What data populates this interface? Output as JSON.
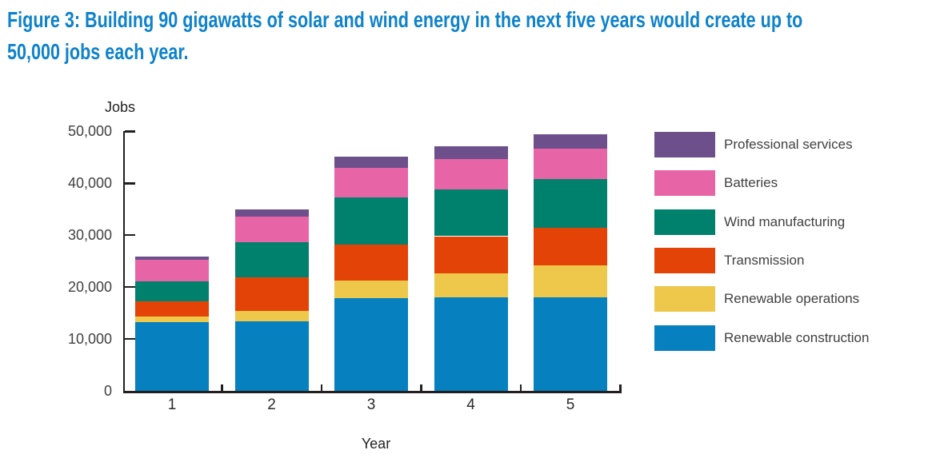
{
  "figure": {
    "title_line1": "Figure 3: Building 90 gigawatts of solar and wind energy in the next five years would create up to",
    "title_line2": "50,000 jobs each year.",
    "title_color": "#0e82ca"
  },
  "chart_data": {
    "type": "bar",
    "stacked": true,
    "title": "Figure 3: Building 90 gigawatts of solar and wind energy in the next five years would create up to 50,000 jobs each year.",
    "xlabel": "Year",
    "ylabel": "Jobs",
    "categories": [
      "1",
      "2",
      "3",
      "4",
      "5"
    ],
    "series": [
      {
        "name": "Renewable construction",
        "color": "#0680be",
        "values": [
          13300,
          13400,
          17900,
          18000,
          18000
        ]
      },
      {
        "name": "Renewable operations",
        "color": "#edc84a",
        "values": [
          1000,
          2000,
          3300,
          4600,
          6200
        ]
      },
      {
        "name": "Transmission",
        "color": "#e34306",
        "values": [
          3000,
          6400,
          7000,
          7200,
          7200
        ]
      },
      {
        "name": "Wind manufacturing",
        "color": "#00816e",
        "values": [
          3750,
          6900,
          9000,
          9000,
          9400
        ]
      },
      {
        "name": "Batteries",
        "color": "#e765a6",
        "values": [
          4200,
          4900,
          5800,
          5800,
          5800
        ]
      },
      {
        "name": "Professional services",
        "color": "#6d4f8c",
        "values": [
          650,
          1400,
          2200,
          2600,
          2900
        ]
      }
    ],
    "totals": [
      25900,
      35000,
      45200,
      47200,
      49500
    ],
    "ylim": [
      0,
      50000
    ],
    "ytick_labels": [
      "0",
      "10,000",
      "20,000",
      "30,000",
      "40,000",
      "50,000"
    ],
    "grid": false,
    "legend_position": "right",
    "legend_order": "top-of-stack-first",
    "axis_color": "#231f20"
  }
}
